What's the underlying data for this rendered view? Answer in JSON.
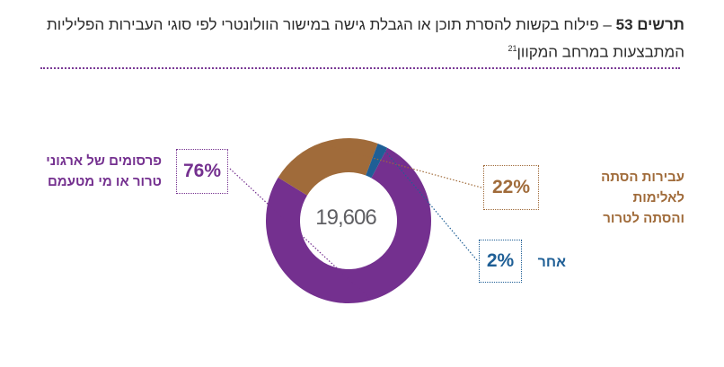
{
  "title": {
    "figure_label": "תרשים 53",
    "text": " – פילוח בקשות להסרת תוכן או הגבלת גישה במישור הוולונטרי לפי סוגי העבירות הפליליות המתבצעות במרחב המקוון",
    "footnote": "21"
  },
  "chart_data": {
    "type": "pie",
    "donut": true,
    "center_label": "19,606",
    "categories": [
      "פרסומים של ארגוני טרור או מי מטעמם",
      "עבירות הסתה לאלימות והסתה לטרור",
      "אחר"
    ],
    "values": [
      76,
      22,
      2
    ],
    "value_labels": [
      "76%",
      "22%",
      "2%"
    ],
    "colors": [
      "#74308f",
      "#a06b3a",
      "#1f5f96"
    ]
  },
  "labels": {
    "slice_0_line1": "פרסומים של ארגוני",
    "slice_0_line2": "טרור או מי מטעמם",
    "slice_1_line1": "עבירות הסתה לאלימות",
    "slice_1_line2": "והסתה לטרור",
    "slice_2_line1": "אחר"
  }
}
